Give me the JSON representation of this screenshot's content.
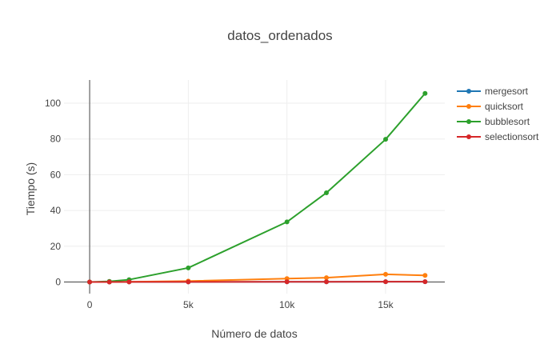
{
  "chart_data": {
    "type": "line",
    "title": "datos_ordenados",
    "xlabel": "Número de datos",
    "ylabel": "Tiempo (s)",
    "xlim": [
      -1300,
      18000
    ],
    "ylim": [
      -6.5,
      113
    ],
    "xticks": [
      0,
      5000,
      10000,
      15000
    ],
    "xtick_labels": [
      "0",
      "5k",
      "10k",
      "15k"
    ],
    "yticks": [
      0,
      20,
      40,
      60,
      80,
      100
    ],
    "ytick_labels": [
      "0",
      "20",
      "40",
      "60",
      "80",
      "100"
    ],
    "grid": true,
    "legend_position": "top-right",
    "x": [
      0,
      1000,
      2000,
      5000,
      10000,
      12000,
      15000,
      17000
    ],
    "series": [
      {
        "name": "mergesort",
        "color": "#1f77b4",
        "values": [
          0,
          0.01,
          0.02,
          0.05,
          0.1,
          0.12,
          0.15,
          0.17
        ]
      },
      {
        "name": "quicksort",
        "color": "#ff7f0e",
        "values": [
          0,
          0.02,
          0.08,
          0.5,
          1.9,
          2.4,
          4.3,
          3.7
        ]
      },
      {
        "name": "bubblesort",
        "color": "#2ca02c",
        "values": [
          0,
          0.35,
          1.3,
          7.9,
          33.6,
          49.9,
          79.8,
          105.5
        ]
      },
      {
        "name": "selectionsort",
        "color": "#d62728",
        "values": [
          0,
          0.01,
          0.02,
          0.05,
          0.1,
          0.12,
          0.15,
          0.17
        ]
      }
    ]
  }
}
